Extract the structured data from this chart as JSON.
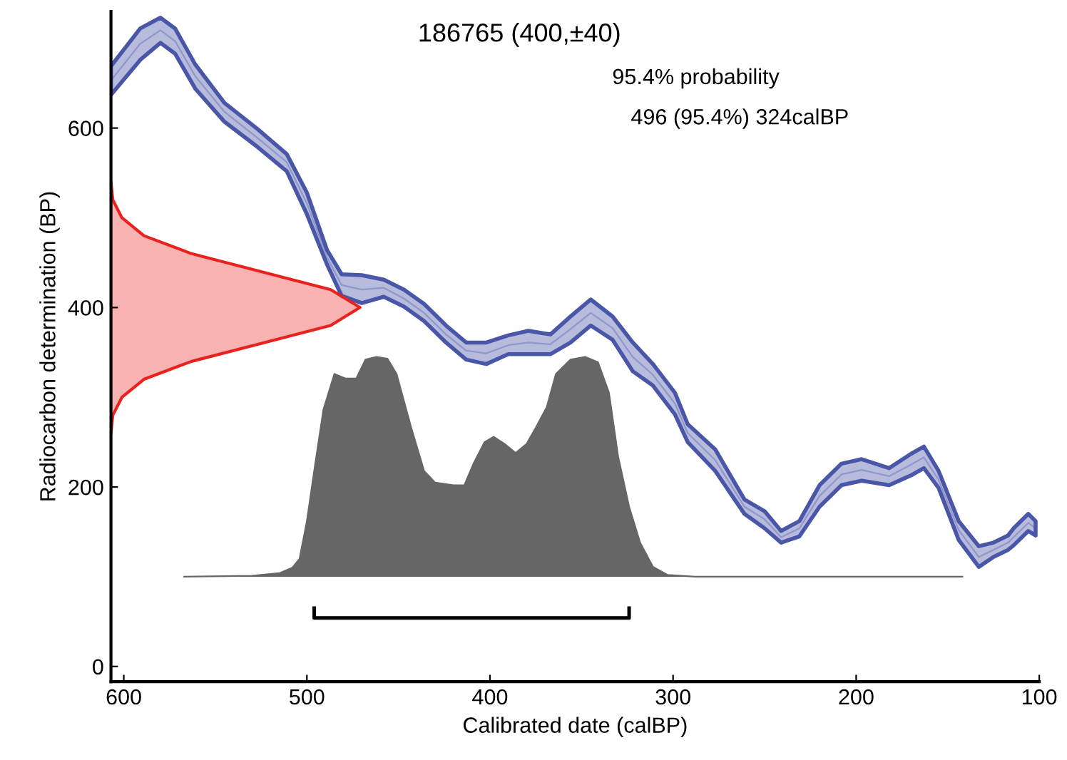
{
  "chart_data": {
    "type": "area",
    "title": "186765 (400,±40)",
    "xlabel": "Calibrated date (calBP)",
    "ylabel": "Radiocarbon determination (BP)",
    "annotations": [
      "95.4% probability",
      "496 (95.4%) 324calBP"
    ],
    "xlim": [
      607,
      100
    ],
    "ylim": [
      -17,
      730
    ],
    "xticks": [
      600,
      500,
      400,
      300,
      200,
      100
    ],
    "yticks": [
      0,
      200,
      400,
      600
    ],
    "grid": false,
    "legend": false,
    "series": [
      {
        "type": "line",
        "color": "#4a56a8",
        "x": [
          607,
          591,
          580,
          572,
          561,
          545,
          527,
          511,
          500,
          489,
          481,
          470,
          458,
          447,
          436,
          424,
          413,
          402,
          390,
          379,
          367,
          356,
          345,
          333,
          322,
          311,
          299,
          292,
          277,
          261,
          250,
          241,
          231,
          220,
          208,
          197,
          182,
          170,
          163,
          155,
          144,
          133,
          125,
          117,
          114,
          106,
          102
        ],
        "lower": [
          637,
          676,
          695,
          683,
          644,
          607,
          579,
          552,
          504,
          448,
          413,
          405,
          412,
          401,
          385,
          361,
          342,
          337,
          348,
          348,
          348,
          361,
          380,
          364,
          329,
          313,
          281,
          250,
          218,
          170,
          154,
          138,
          145,
          178,
          202,
          207,
          202,
          213,
          221,
          199,
          141,
          111,
          122,
          130,
          135,
          151,
          146
        ],
        "upper": [
          669,
          711,
          723,
          711,
          671,
          628,
          599,
          571,
          528,
          464,
          437,
          436,
          431,
          420,
          404,
          380,
          361,
          361,
          369,
          374,
          370,
          390,
          409,
          390,
          361,
          337,
          305,
          270,
          242,
          186,
          173,
          151,
          162,
          202,
          226,
          231,
          221,
          237,
          245,
          218,
          162,
          134,
          138,
          146,
          154,
          170,
          162
        ],
        "values": [
          653,
          694,
          709,
          697,
          658,
          618,
          589,
          562,
          516,
          456,
          425,
          420,
          422,
          410,
          394,
          370,
          352,
          349,
          358,
          361,
          359,
          376,
          394,
          377,
          345,
          325,
          293,
          260,
          230,
          178,
          164,
          144,
          154,
          190,
          214,
          219,
          212,
          225,
          233,
          208,
          152,
          122,
          130,
          138,
          144,
          160,
          154
        ]
      },
      {
        "color": "#e8231f",
        "x": [
          607,
          606,
          601,
          589,
          563,
          525,
          487,
          471,
          487,
          525,
          563,
          589,
          601,
          606,
          607
        ],
        "values": [
          260,
          280,
          300,
          320,
          340,
          360,
          380,
          400,
          420,
          440,
          460,
          480,
          500,
          520,
          540
        ]
      },
      {
        "color": "#666666",
        "x": [
          567,
          530,
          515,
          508,
          504,
          500,
          496,
          491,
          485,
          479,
          473,
          468,
          462,
          456,
          451,
          443,
          436,
          430,
          420,
          414,
          409,
          403,
          398,
          392,
          386,
          380,
          375,
          369,
          364,
          356,
          348,
          341,
          335,
          330,
          324,
          318,
          311,
          303,
          288,
          142
        ],
        "values": [
          100,
          101,
          104,
          110,
          120,
          162,
          218,
          286,
          326,
          321,
          321,
          342,
          345,
          343,
          326,
          266,
          218,
          205,
          202,
          202,
          226,
          250,
          256,
          248,
          238,
          248,
          266,
          289,
          326,
          342,
          345,
          339,
          305,
          234,
          178,
          138,
          111,
          102,
          100,
          100
        ]
      },
      {
        "type": "line",
        "color": "#000000",
        "x": [
          496,
          496,
          324,
          324
        ],
        "values": [
          65,
          54,
          54,
          65
        ]
      }
    ]
  }
}
